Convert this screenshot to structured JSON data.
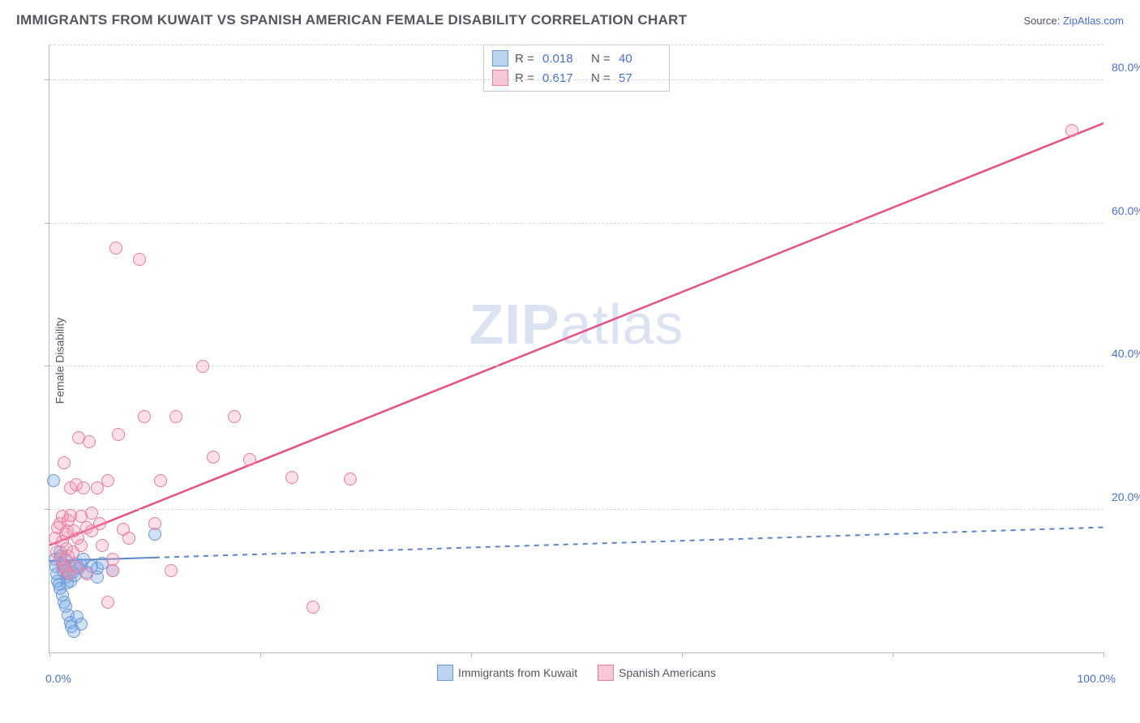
{
  "title": "IMMIGRANTS FROM KUWAIT VS SPANISH AMERICAN FEMALE DISABILITY CORRELATION CHART",
  "source": {
    "label": "Source: ",
    "link": "ZipAtlas.com"
  },
  "watermark": {
    "bold": "ZIP",
    "rest": "atlas"
  },
  "chart": {
    "type": "scatter",
    "background_color": "#ffffff",
    "grid_color": "#d6d6d6",
    "axis_color": "#b8b8b8",
    "text_color": "#555560",
    "link_color": "#4a6fd4",
    "xlim": [
      0,
      100
    ],
    "ylim": [
      0,
      85
    ],
    "ylabel": "Female Disability",
    "xticks": [
      0,
      20,
      40,
      60,
      80,
      100
    ],
    "xtick_labels": {
      "left": "0.0%",
      "right": "100.0%"
    },
    "yticks": [
      {
        "v": 20,
        "label": "20.0%"
      },
      {
        "v": 40,
        "label": "40.0%"
      },
      {
        "v": 60,
        "label": "60.0%"
      },
      {
        "v": 80,
        "label": "80.0%"
      }
    ],
    "marker_radius": 8,
    "marker_border": 1.5,
    "series": [
      {
        "name": "Immigrants from Kuwait",
        "fill": "rgba(120,168,230,0.35)",
        "stroke": "#6a97d6",
        "swatch_fill": "#bdd4f0",
        "swatch_border": "#6a97d6",
        "R": "0.018",
        "N": "40",
        "regression": {
          "x0": 0,
          "y0": 12.8,
          "x1": 100,
          "y1": 17.5,
          "dashed": true,
          "solid_until_x": 10,
          "color": "#5a85c9",
          "width": 2
        },
        "points": [
          [
            0.4,
            24.0
          ],
          [
            0.5,
            13.0
          ],
          [
            0.6,
            12.0
          ],
          [
            0.7,
            11.0
          ],
          [
            0.8,
            10.0
          ],
          [
            0.9,
            9.5
          ],
          [
            1.0,
            9.0
          ],
          [
            1.0,
            14.0
          ],
          [
            1.1,
            13.5
          ],
          [
            1.2,
            8.0
          ],
          [
            1.2,
            12.5
          ],
          [
            1.3,
            11.5
          ],
          [
            1.4,
            7.0
          ],
          [
            1.4,
            12.0
          ],
          [
            1.5,
            6.5
          ],
          [
            1.5,
            13.0
          ],
          [
            1.6,
            10.5
          ],
          [
            1.7,
            9.8
          ],
          [
            1.8,
            11.0
          ],
          [
            1.8,
            5.2
          ],
          [
            1.9,
            12.0
          ],
          [
            2.0,
            4.2
          ],
          [
            2.0,
            10.0
          ],
          [
            2.1,
            3.6
          ],
          [
            2.2,
            11.2
          ],
          [
            2.3,
            3.0
          ],
          [
            2.4,
            10.8
          ],
          [
            2.5,
            12.3
          ],
          [
            2.6,
            5.0
          ],
          [
            2.8,
            11.8
          ],
          [
            3.0,
            12.2
          ],
          [
            3.0,
            4.0
          ],
          [
            3.2,
            13.0
          ],
          [
            3.5,
            11.2
          ],
          [
            4.0,
            12.0
          ],
          [
            4.5,
            10.5
          ],
          [
            4.5,
            11.8
          ],
          [
            5.0,
            12.5
          ],
          [
            6.0,
            11.5
          ],
          [
            10.0,
            16.5
          ]
        ]
      },
      {
        "name": "Spanish Americans",
        "fill": "rgba(244,150,180,0.3)",
        "stroke": "#e87ca0",
        "swatch_fill": "#f7c7d6",
        "swatch_border": "#e87ca0",
        "R": "0.617",
        "N": "57",
        "regression": {
          "x0": 0,
          "y0": 15.0,
          "x1": 100,
          "y1": 74.0,
          "dashed": false,
          "color": "#e84f84",
          "width": 2.5
        },
        "points": [
          [
            0.5,
            16.0
          ],
          [
            0.7,
            14.0
          ],
          [
            0.8,
            17.5
          ],
          [
            1.0,
            13.0
          ],
          [
            1.0,
            18.0
          ],
          [
            1.2,
            15.5
          ],
          [
            1.2,
            19.0
          ],
          [
            1.3,
            12.0
          ],
          [
            1.4,
            26.5
          ],
          [
            1.5,
            16.5
          ],
          [
            1.5,
            11.5
          ],
          [
            1.6,
            14.5
          ],
          [
            1.7,
            17.0
          ],
          [
            1.8,
            18.5
          ],
          [
            1.8,
            13.5
          ],
          [
            1.9,
            11.0
          ],
          [
            2.0,
            19.2
          ],
          [
            2.0,
            23.0
          ],
          [
            2.2,
            14.0
          ],
          [
            2.3,
            17.0
          ],
          [
            2.5,
            12.0
          ],
          [
            2.5,
            23.5
          ],
          [
            2.7,
            16.0
          ],
          [
            2.8,
            30.0
          ],
          [
            3.0,
            19.0
          ],
          [
            3.0,
            15.0
          ],
          [
            3.2,
            23.0
          ],
          [
            3.5,
            17.5
          ],
          [
            3.5,
            11.0
          ],
          [
            3.8,
            29.5
          ],
          [
            4.0,
            17.0
          ],
          [
            4.0,
            19.5
          ],
          [
            4.5,
            23.0
          ],
          [
            4.8,
            18.0
          ],
          [
            5.0,
            15.0
          ],
          [
            5.5,
            24.0
          ],
          [
            5.5,
            7.0
          ],
          [
            6.0,
            11.5
          ],
          [
            6.0,
            13.0
          ],
          [
            6.3,
            56.5
          ],
          [
            6.5,
            30.5
          ],
          [
            7.0,
            17.2
          ],
          [
            7.5,
            16.0
          ],
          [
            8.5,
            55.0
          ],
          [
            9.0,
            33.0
          ],
          [
            10.0,
            18.0
          ],
          [
            10.5,
            24.0
          ],
          [
            11.5,
            11.5
          ],
          [
            12.0,
            33.0
          ],
          [
            14.5,
            40.0
          ],
          [
            15.5,
            27.3
          ],
          [
            17.5,
            33.0
          ],
          [
            19.0,
            27.0
          ],
          [
            23.0,
            24.5
          ],
          [
            25.0,
            6.3
          ],
          [
            28.5,
            24.2
          ],
          [
            97.0,
            73.0
          ]
        ]
      }
    ]
  }
}
